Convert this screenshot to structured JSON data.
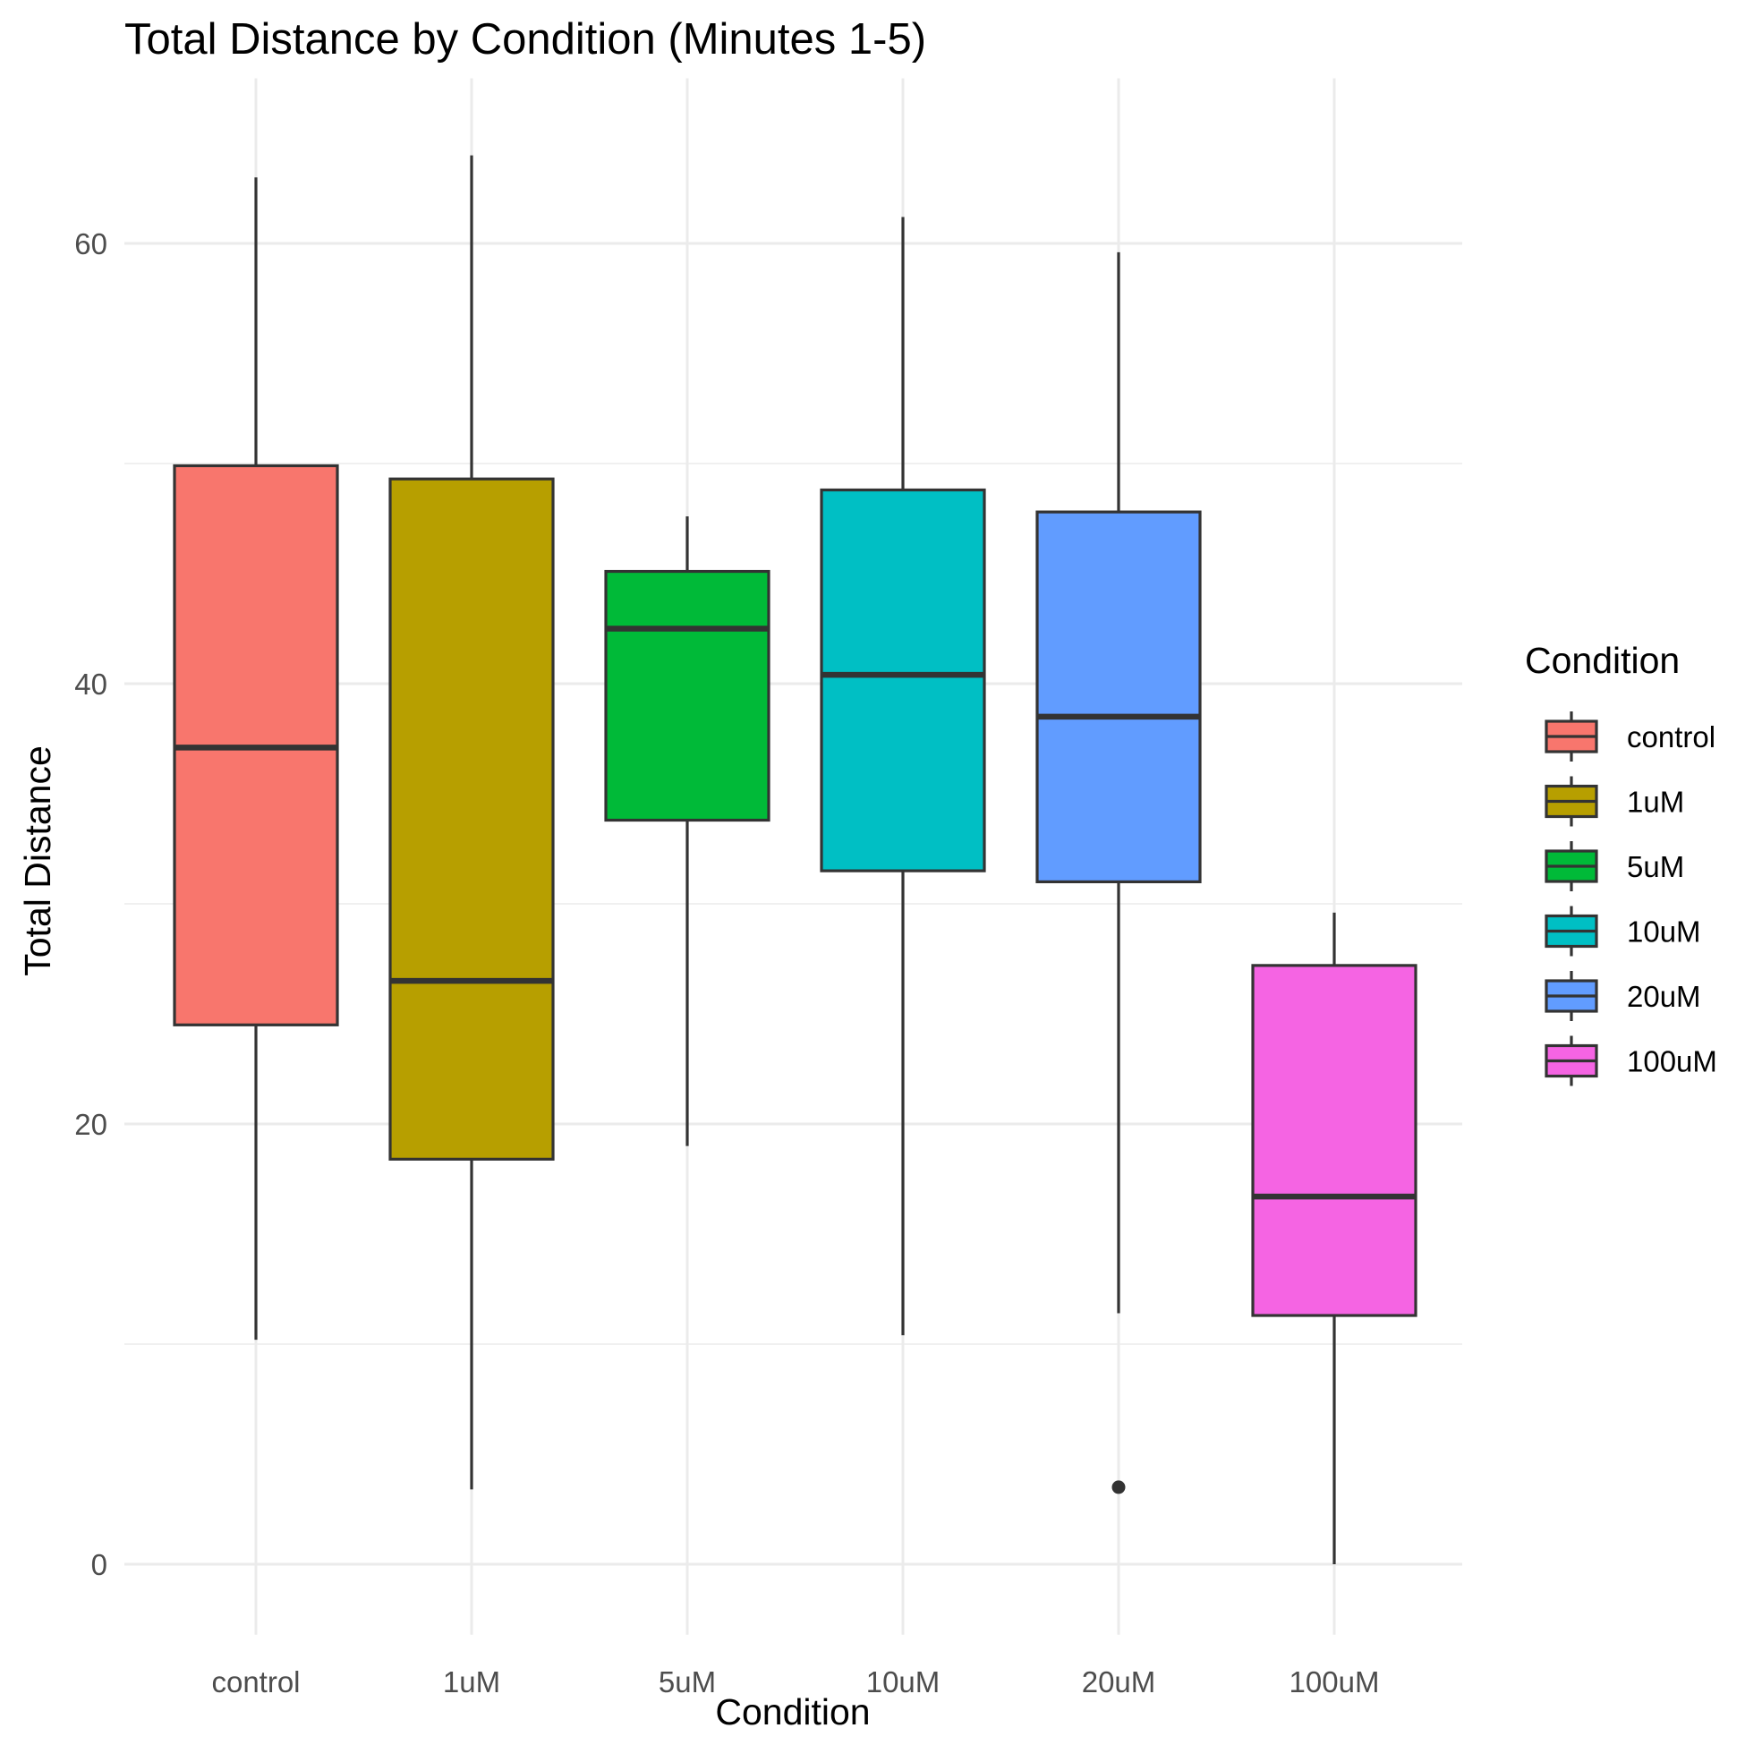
{
  "chart_data": {
    "type": "boxplot",
    "title": "Total Distance by Condition (Minutes 1-5)",
    "xlabel": "Condition",
    "ylabel": "Total Distance",
    "ylim": [
      -3.2,
      67.5
    ],
    "y_ticks": [
      0,
      20,
      40,
      60
    ],
    "y_tick_labels": [
      "0",
      "20",
      "40",
      "60"
    ],
    "grid": true,
    "legend": {
      "title": "Condition",
      "position": "right"
    },
    "categories": [
      "control",
      "1uM",
      "5uM",
      "10uM",
      "20uM",
      "100uM"
    ],
    "series": [
      {
        "category": "control",
        "color": "#F8766D",
        "whisker_low": 10.2,
        "q1": 24.5,
        "median": 37.1,
        "q3": 49.9,
        "whisker_high": 63.0,
        "outliers": []
      },
      {
        "category": "1uM",
        "color": "#B79F00",
        "whisker_low": 3.4,
        "q1": 18.4,
        "median": 26.5,
        "q3": 49.3,
        "whisker_high": 64.0,
        "outliers": []
      },
      {
        "category": "5uM",
        "color": "#00BA38",
        "whisker_low": 19.0,
        "q1": 33.8,
        "median": 42.5,
        "q3": 45.1,
        "whisker_high": 47.6,
        "outliers": []
      },
      {
        "category": "10uM",
        "color": "#00BFC4",
        "whisker_low": 10.4,
        "q1": 31.5,
        "median": 40.4,
        "q3": 48.8,
        "whisker_high": 61.2,
        "outliers": []
      },
      {
        "category": "20uM",
        "color": "#619CFF",
        "whisker_low": 11.4,
        "q1": 31.0,
        "median": 38.5,
        "q3": 47.8,
        "whisker_high": 59.6,
        "outliers": [
          3.5
        ]
      },
      {
        "category": "100uM",
        "color": "#F564E3",
        "whisker_low": 0.0,
        "q1": 11.3,
        "median": 16.7,
        "q3": 27.2,
        "whisker_high": 29.6,
        "outliers": []
      }
    ]
  }
}
